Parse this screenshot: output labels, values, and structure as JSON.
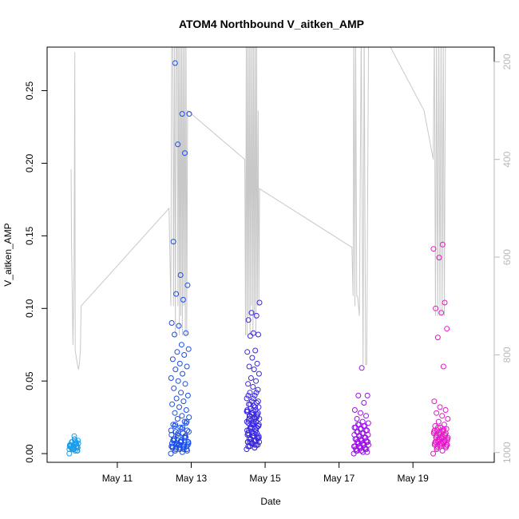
{
  "chart_data": {
    "type": "scatter",
    "title": "ATOM4 Northbound V_aitken_AMP",
    "xlabel": "Date",
    "ylabel": "V_aitken_AMP",
    "x_ticks": [
      {
        "day": 11,
        "label": "May 11"
      },
      {
        "day": 13,
        "label": "May 13"
      },
      {
        "day": 15,
        "label": "May 15"
      },
      {
        "day": 17,
        "label": "May 17"
      },
      {
        "day": 19,
        "label": "May 19"
      }
    ],
    "xlim": [
      9.1,
      21.2
    ],
    "ylim": [
      -0.006,
      0.28
    ],
    "y_ticks": [
      0.0,
      0.05,
      0.1,
      0.15,
      0.2,
      0.25
    ],
    "y_tick_labels": [
      "0.00",
      "0.05",
      "0.10",
      "0.15",
      "0.20",
      "0.25"
    ],
    "y2": {
      "lim": [
        1020,
        170
      ],
      "ticks": [
        200,
        400,
        600,
        800,
        1000
      ],
      "tick_labels": [
        "200",
        "400",
        "600",
        "800",
        "1000"
      ],
      "color": "#b8b8b8"
    },
    "grid": false,
    "clusters": [
      {
        "start": 9.7,
        "end": 9.95,
        "color": "#1a9ee8",
        "values": [
          0.0,
          0.002,
          0.004,
          0.005,
          0.003,
          0.006,
          0.007,
          0.008,
          0.009,
          0.01,
          0.006,
          0.004,
          0.003,
          0.005,
          0.007,
          0.008,
          0.002,
          0.004,
          0.006,
          0.005,
          0.003,
          0.007,
          0.009,
          0.004,
          0.002,
          0.005,
          0.006,
          0.008,
          0.003,
          0.004,
          0.012,
          0.005,
          0.007,
          0.004,
          0.003,
          0.006
        ]
      },
      {
        "start": 12.45,
        "end": 12.95,
        "color": "#1a4ee6",
        "values": [
          0.0,
          0.001,
          0.002,
          0.003,
          0.004,
          0.005,
          0.006,
          0.007,
          0.008,
          0.009,
          0.01,
          0.011,
          0.012,
          0.013,
          0.014,
          0.015,
          0.016,
          0.018,
          0.02,
          0.022,
          0.024,
          0.025,
          0.026,
          0.028,
          0.03,
          0.032,
          0.034,
          0.036,
          0.038,
          0.04,
          0.042,
          0.045,
          0.048,
          0.05,
          0.052,
          0.055,
          0.058,
          0.06,
          0.062,
          0.065,
          0.068,
          0.07,
          0.072,
          0.075,
          0.082,
          0.083,
          0.088,
          0.09,
          0.106,
          0.11,
          0.116,
          0.123,
          0.146,
          0.207,
          0.213,
          0.234,
          0.234,
          0.269,
          0.005,
          0.006,
          0.004,
          0.003,
          0.007,
          0.008,
          0.009,
          0.01,
          0.012,
          0.006,
          0.005,
          0.004,
          0.003,
          0.002,
          0.008,
          0.009,
          0.011,
          0.013,
          0.015,
          0.017,
          0.019,
          0.021,
          0.006,
          0.007,
          0.005,
          0.004,
          0.006,
          0.008,
          0.01,
          0.012,
          0.014,
          0.016,
          0.018,
          0.02,
          0.022,
          0.003,
          0.004,
          0.005,
          0.006,
          0.007,
          0.008,
          0.009
        ]
      },
      {
        "start": 14.5,
        "end": 14.85,
        "color": "#3a28e0",
        "values": [
          0.003,
          0.004,
          0.005,
          0.006,
          0.007,
          0.008,
          0.009,
          0.01,
          0.011,
          0.012,
          0.013,
          0.014,
          0.015,
          0.016,
          0.017,
          0.018,
          0.019,
          0.02,
          0.021,
          0.022,
          0.023,
          0.024,
          0.025,
          0.026,
          0.027,
          0.028,
          0.029,
          0.03,
          0.031,
          0.032,
          0.033,
          0.034,
          0.035,
          0.036,
          0.038,
          0.04,
          0.042,
          0.044,
          0.046,
          0.048,
          0.05,
          0.052,
          0.055,
          0.058,
          0.06,
          0.062,
          0.066,
          0.07,
          0.071,
          0.081,
          0.082,
          0.083,
          0.092,
          0.095,
          0.097,
          0.104,
          0.004,
          0.005,
          0.006,
          0.007,
          0.008,
          0.009,
          0.01,
          0.012,
          0.014,
          0.016,
          0.018,
          0.02,
          0.022,
          0.024,
          0.026,
          0.028,
          0.03,
          0.005,
          0.006,
          0.007,
          0.008,
          0.009,
          0.01,
          0.011,
          0.012,
          0.013,
          0.015,
          0.017,
          0.019,
          0.021,
          0.023,
          0.025,
          0.027,
          0.029,
          0.006,
          0.008,
          0.01,
          0.012,
          0.014,
          0.016,
          0.018,
          0.02,
          0.022,
          0.024,
          0.026,
          0.028,
          0.03,
          0.032,
          0.034,
          0.036,
          0.038,
          0.04,
          0.042
        ]
      },
      {
        "start": 17.4,
        "end": 17.8,
        "color": "#9a10e6",
        "values": [
          0.0,
          0.001,
          0.002,
          0.003,
          0.004,
          0.005,
          0.006,
          0.007,
          0.008,
          0.009,
          0.01,
          0.011,
          0.012,
          0.013,
          0.014,
          0.015,
          0.016,
          0.017,
          0.018,
          0.019,
          0.02,
          0.021,
          0.022,
          0.024,
          0.026,
          0.028,
          0.03,
          0.035,
          0.04,
          0.04,
          0.059,
          0.002,
          0.003,
          0.004,
          0.005,
          0.006,
          0.007,
          0.008,
          0.009,
          0.01,
          0.011,
          0.012,
          0.013,
          0.014,
          0.015,
          0.016,
          0.017,
          0.018,
          0.019,
          0.02,
          0.001,
          0.002,
          0.003,
          0.004,
          0.005,
          0.006,
          0.007,
          0.008,
          0.009,
          0.01
        ]
      },
      {
        "start": 19.55,
        "end": 19.95,
        "color": "#e616c8",
        "values": [
          0.0,
          0.002,
          0.003,
          0.004,
          0.005,
          0.006,
          0.007,
          0.008,
          0.009,
          0.01,
          0.011,
          0.012,
          0.013,
          0.014,
          0.015,
          0.016,
          0.017,
          0.018,
          0.019,
          0.02,
          0.022,
          0.024,
          0.026,
          0.028,
          0.03,
          0.032,
          0.036,
          0.06,
          0.08,
          0.086,
          0.097,
          0.1,
          0.104,
          0.135,
          0.141,
          0.144,
          0.004,
          0.005,
          0.006,
          0.007,
          0.008,
          0.009,
          0.01,
          0.011,
          0.012,
          0.013,
          0.014,
          0.015,
          0.016,
          0.005,
          0.006,
          0.007,
          0.008,
          0.009,
          0.01,
          0.011,
          0.012,
          0.013,
          0.014,
          0.015,
          0.016,
          0.017,
          0.018,
          0.006,
          0.007,
          0.008,
          0.009,
          0.01
        ]
      }
    ],
    "pressure_series": {
      "color": "#c8c8c8",
      "points": [
        [
          9.75,
          420
        ],
        [
          9.76,
          560
        ],
        [
          9.8,
          780
        ],
        [
          9.83,
          620
        ],
        [
          9.85,
          180
        ],
        [
          9.86,
          790
        ],
        [
          9.88,
          800
        ],
        [
          9.92,
          820
        ],
        [
          9.95,
          830
        ],
        [
          9.97,
          820
        ],
        [
          10.0,
          790
        ],
        [
          10.02,
          700
        ],
        [
          12.4,
          500
        ],
        [
          12.45,
          700
        ],
        [
          12.47,
          140
        ],
        [
          12.5,
          100
        ],
        [
          12.52,
          700
        ],
        [
          12.55,
          140
        ],
        [
          12.57,
          760
        ],
        [
          12.6,
          140
        ],
        [
          12.62,
          100
        ],
        [
          12.64,
          700
        ],
        [
          12.66,
          140
        ],
        [
          12.68,
          760
        ],
        [
          12.7,
          140
        ],
        [
          12.72,
          720
        ],
        [
          12.74,
          140
        ],
        [
          12.76,
          760
        ],
        [
          12.78,
          140
        ],
        [
          12.8,
          700
        ],
        [
          12.82,
          140
        ],
        [
          12.84,
          760
        ],
        [
          12.86,
          140
        ],
        [
          12.88,
          760
        ],
        [
          12.9,
          300
        ],
        [
          14.45,
          400
        ],
        [
          14.47,
          760
        ],
        [
          14.49,
          140
        ],
        [
          14.51,
          760
        ],
        [
          14.53,
          140
        ],
        [
          14.55,
          720
        ],
        [
          14.57,
          140
        ],
        [
          14.59,
          760
        ],
        [
          14.61,
          140
        ],
        [
          14.63,
          700
        ],
        [
          14.65,
          140
        ],
        [
          14.67,
          760
        ],
        [
          14.69,
          140
        ],
        [
          14.71,
          720
        ],
        [
          14.73,
          140
        ],
        [
          14.75,
          760
        ],
        [
          14.77,
          140
        ],
        [
          14.79,
          700
        ],
        [
          14.81,
          300
        ],
        [
          14.83,
          700
        ],
        [
          14.85,
          460
        ],
        [
          17.35,
          580
        ],
        [
          17.38,
          680
        ],
        [
          17.4,
          140
        ],
        [
          17.43,
          700
        ],
        [
          17.45,
          140
        ],
        [
          17.48,
          680
        ],
        [
          17.5,
          680
        ],
        [
          17.55,
          720
        ],
        [
          17.6,
          140
        ],
        [
          17.65,
          820
        ],
        [
          17.68,
          140
        ],
        [
          17.72,
          820
        ],
        [
          17.75,
          820
        ],
        [
          17.8,
          140
        ],
        [
          17.85,
          140
        ],
        [
          17.9,
          100
        ],
        [
          19.3,
          300
        ],
        [
          19.55,
          400
        ],
        [
          19.58,
          140
        ],
        [
          19.61,
          720
        ],
        [
          19.64,
          140
        ],
        [
          19.67,
          720
        ],
        [
          19.7,
          140
        ],
        [
          19.73,
          720
        ],
        [
          19.76,
          140
        ],
        [
          19.79,
          720
        ],
        [
          19.82,
          140
        ],
        [
          19.85,
          720
        ],
        [
          19.88,
          140
        ]
      ]
    }
  }
}
